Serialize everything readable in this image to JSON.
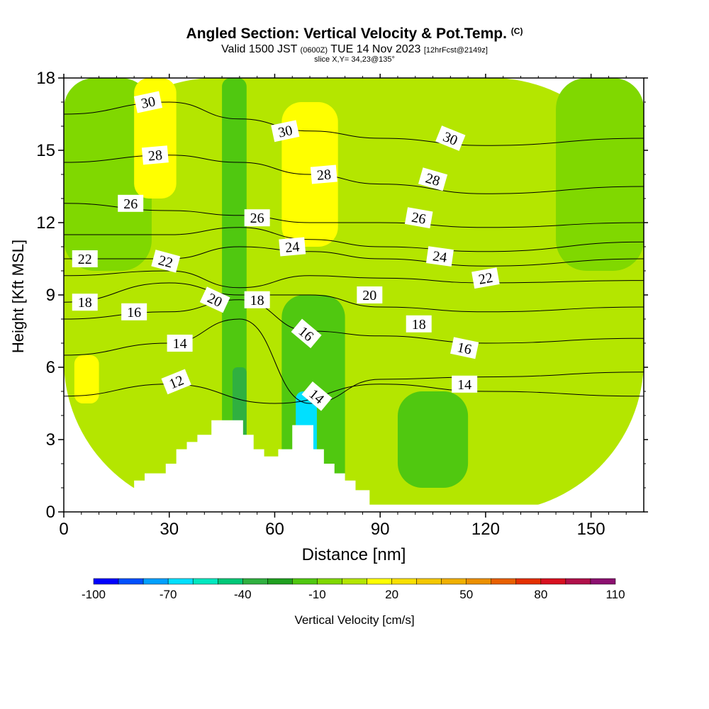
{
  "title": "Angled Section: Vertical Velocity & Pot.Temp.",
  "title_mark": "(C)",
  "valid": {
    "prefix": "Valid 1500 JST",
    "utc": "(0600Z)",
    "date": "TUE 14 Nov 2023",
    "fcst": "[12hrFcst@2149z]"
  },
  "slice": "slice X,Y= 34,23@135°",
  "colorbar_label": "Vertical Velocity [cm/s]",
  "colors": {
    "accent_fill": "#ffff00",
    "terrain": "#ffffff"
  },
  "chart_data": {
    "type": "heatmap",
    "xlabel": "Distance [nm]",
    "ylabel": "Height [Kft MSL]",
    "xlim": [
      0,
      165
    ],
    "ylim": [
      0,
      18
    ],
    "xticks": [
      "0",
      "30",
      "60",
      "90",
      "120",
      "150"
    ],
    "yticks": [
      "0",
      "3",
      "6",
      "9",
      "12",
      "15",
      "18"
    ],
    "colorbar": {
      "levels": [
        -100,
        -90,
        -80,
        -70,
        -60,
        -50,
        -40,
        -30,
        -20,
        -10,
        0,
        10,
        20,
        30,
        40,
        50,
        60,
        70,
        80,
        90,
        100,
        110
      ],
      "tick_labels": [
        "-100",
        "-70",
        "-40",
        "-10",
        "20",
        "50",
        "80",
        "110"
      ],
      "colors": [
        "#0000ff",
        "#0050ff",
        "#00a0ff",
        "#00e0ff",
        "#00e8c0",
        "#00c878",
        "#30b040",
        "#20a020",
        "#50c810",
        "#80d800",
        "#b4e600",
        "#ffff00",
        "#f8e000",
        "#f4c800",
        "#f0b000",
        "#ec9000",
        "#e86000",
        "#e43000",
        "#d81020",
        "#b0104a",
        "#8c1070"
      ]
    },
    "velocity_regions": [
      {
        "value": 5,
        "x": [
          0,
          165
        ],
        "y": [
          0,
          18
        ]
      },
      {
        "value": -5,
        "x": [
          0,
          25
        ],
        "y": [
          10,
          18
        ]
      },
      {
        "value": -5,
        "x": [
          140,
          165
        ],
        "y": [
          10,
          18
        ]
      },
      {
        "value": -15,
        "x": [
          45,
          52
        ],
        "y": [
          0,
          18
        ]
      },
      {
        "value": -15,
        "x": [
          62,
          80
        ],
        "y": [
          0,
          9
        ]
      },
      {
        "value": 15,
        "x": [
          20,
          32
        ],
        "y": [
          13,
          18
        ]
      },
      {
        "value": 15,
        "x": [
          62,
          78
        ],
        "y": [
          11,
          17
        ]
      },
      {
        "value": 15,
        "x": [
          3,
          10
        ],
        "y": [
          4.5,
          6.5
        ]
      },
      {
        "value": -35,
        "x": [
          48,
          52
        ],
        "y": [
          2.5,
          6
        ]
      },
      {
        "value": -65,
        "x": [
          66,
          72
        ],
        "y": [
          1,
          5
        ]
      },
      {
        "value": -15,
        "x": [
          95,
          115
        ],
        "y": [
          1,
          5
        ]
      }
    ],
    "theta_contours": [
      {
        "level": 12,
        "x": [
          0,
          30,
          60,
          90,
          120,
          165
        ],
        "y": [
          4.8,
          5.3,
          4.5,
          5.3,
          5.0,
          4.8
        ]
      },
      {
        "level": 14,
        "x": [
          0,
          30,
          50,
          70,
          90,
          120,
          165
        ],
        "y": [
          6.5,
          7.0,
          8.0,
          4.5,
          5.5,
          5.6,
          5.8
        ]
      },
      {
        "level": 16,
        "x": [
          0,
          30,
          50,
          70,
          90,
          120,
          165
        ],
        "y": [
          8.0,
          8.3,
          8.8,
          7.5,
          7.3,
          7.0,
          7.2
        ]
      },
      {
        "level": 18,
        "x": [
          0,
          30,
          50,
          70,
          90,
          120,
          165
        ],
        "y": [
          8.7,
          9.5,
          9.0,
          9.0,
          8.5,
          8.3,
          8.5
        ]
      },
      {
        "level": 20,
        "x": [
          0,
          30,
          50,
          70,
          90,
          120,
          165
        ],
        "y": [
          9.8,
          10.0,
          9.3,
          9.8,
          9.7,
          9.5,
          9.6
        ]
      },
      {
        "level": 22,
        "x": [
          0,
          30,
          50,
          70,
          90,
          120,
          165
        ],
        "y": [
          10.5,
          10.5,
          11.0,
          10.8,
          10.5,
          10.2,
          10.5
        ]
      },
      {
        "level": 24,
        "x": [
          0,
          30,
          50,
          70,
          90,
          120,
          165
        ],
        "y": [
          11.5,
          11.5,
          11.8,
          11.3,
          11.0,
          10.8,
          11.2
        ]
      },
      {
        "level": 26,
        "x": [
          0,
          30,
          50,
          70,
          90,
          120,
          165
        ],
        "y": [
          12.8,
          12.5,
          12.3,
          12.0,
          12.0,
          11.8,
          12.0
        ]
      },
      {
        "level": 28,
        "x": [
          0,
          30,
          50,
          70,
          90,
          120,
          165
        ],
        "y": [
          14.5,
          14.8,
          14.5,
          14.0,
          13.6,
          13.2,
          13.5
        ]
      },
      {
        "level": 30,
        "x": [
          0,
          30,
          50,
          70,
          90,
          120,
          165
        ],
        "y": [
          16.5,
          17.0,
          16.3,
          15.8,
          15.5,
          15.2,
          15.5
        ]
      }
    ],
    "contour_labels": [
      {
        "text": "30",
        "x": 24,
        "y": 17.0,
        "rot": -12
      },
      {
        "text": "30",
        "x": 63,
        "y": 15.8,
        "rot": -12
      },
      {
        "text": "30",
        "x": 110,
        "y": 15.5,
        "rot": 22
      },
      {
        "text": "28",
        "x": 26,
        "y": 14.8,
        "rot": -5
      },
      {
        "text": "28",
        "x": 74,
        "y": 14.0,
        "rot": -5
      },
      {
        "text": "28",
        "x": 105,
        "y": 13.8,
        "rot": 16
      },
      {
        "text": "26",
        "x": 19,
        "y": 12.8,
        "rot": 0
      },
      {
        "text": "26",
        "x": 55,
        "y": 12.2,
        "rot": 0
      },
      {
        "text": "26",
        "x": 101,
        "y": 12.2,
        "rot": 10
      },
      {
        "text": "24",
        "x": 65,
        "y": 11.0,
        "rot": -5
      },
      {
        "text": "24",
        "x": 107,
        "y": 10.6,
        "rot": 8
      },
      {
        "text": "22",
        "x": 6,
        "y": 10.5,
        "rot": 0
      },
      {
        "text": "22",
        "x": 29,
        "y": 10.4,
        "rot": 15
      },
      {
        "text": "22",
        "x": 120,
        "y": 9.7,
        "rot": -10
      },
      {
        "text": "20",
        "x": 43,
        "y": 8.8,
        "rot": 25
      },
      {
        "text": "20",
        "x": 87,
        "y": 9.0,
        "rot": 0
      },
      {
        "text": "18",
        "x": 6,
        "y": 8.7,
        "rot": 0
      },
      {
        "text": "18",
        "x": 55,
        "y": 8.8,
        "rot": 0
      },
      {
        "text": "18",
        "x": 101,
        "y": 7.8,
        "rot": 0
      },
      {
        "text": "16",
        "x": 20,
        "y": 8.3,
        "rot": 0
      },
      {
        "text": "16",
        "x": 69,
        "y": 7.4,
        "rot": 40
      },
      {
        "text": "16",
        "x": 114,
        "y": 6.8,
        "rot": 12
      },
      {
        "text": "14",
        "x": 33,
        "y": 7.0,
        "rot": 0
      },
      {
        "text": "14",
        "x": 72,
        "y": 4.8,
        "rot": 40
      },
      {
        "text": "14",
        "x": 114,
        "y": 5.3,
        "rot": 0
      },
      {
        "text": "12",
        "x": 32,
        "y": 5.4,
        "rot": -22
      }
    ],
    "terrain": {
      "x": [
        0,
        10,
        17,
        20,
        23,
        29,
        32,
        35,
        38,
        42,
        51,
        54,
        57,
        61,
        65,
        71,
        74,
        77,
        80,
        83,
        87,
        165
      ],
      "y": [
        0.3,
        0.65,
        1.0,
        1.3,
        1.6,
        2.0,
        2.6,
        2.9,
        3.2,
        3.8,
        3.2,
        2.6,
        2.3,
        2.6,
        3.6,
        2.6,
        2.0,
        1.6,
        1.3,
        0.9,
        0.3,
        0.3
      ]
    }
  }
}
